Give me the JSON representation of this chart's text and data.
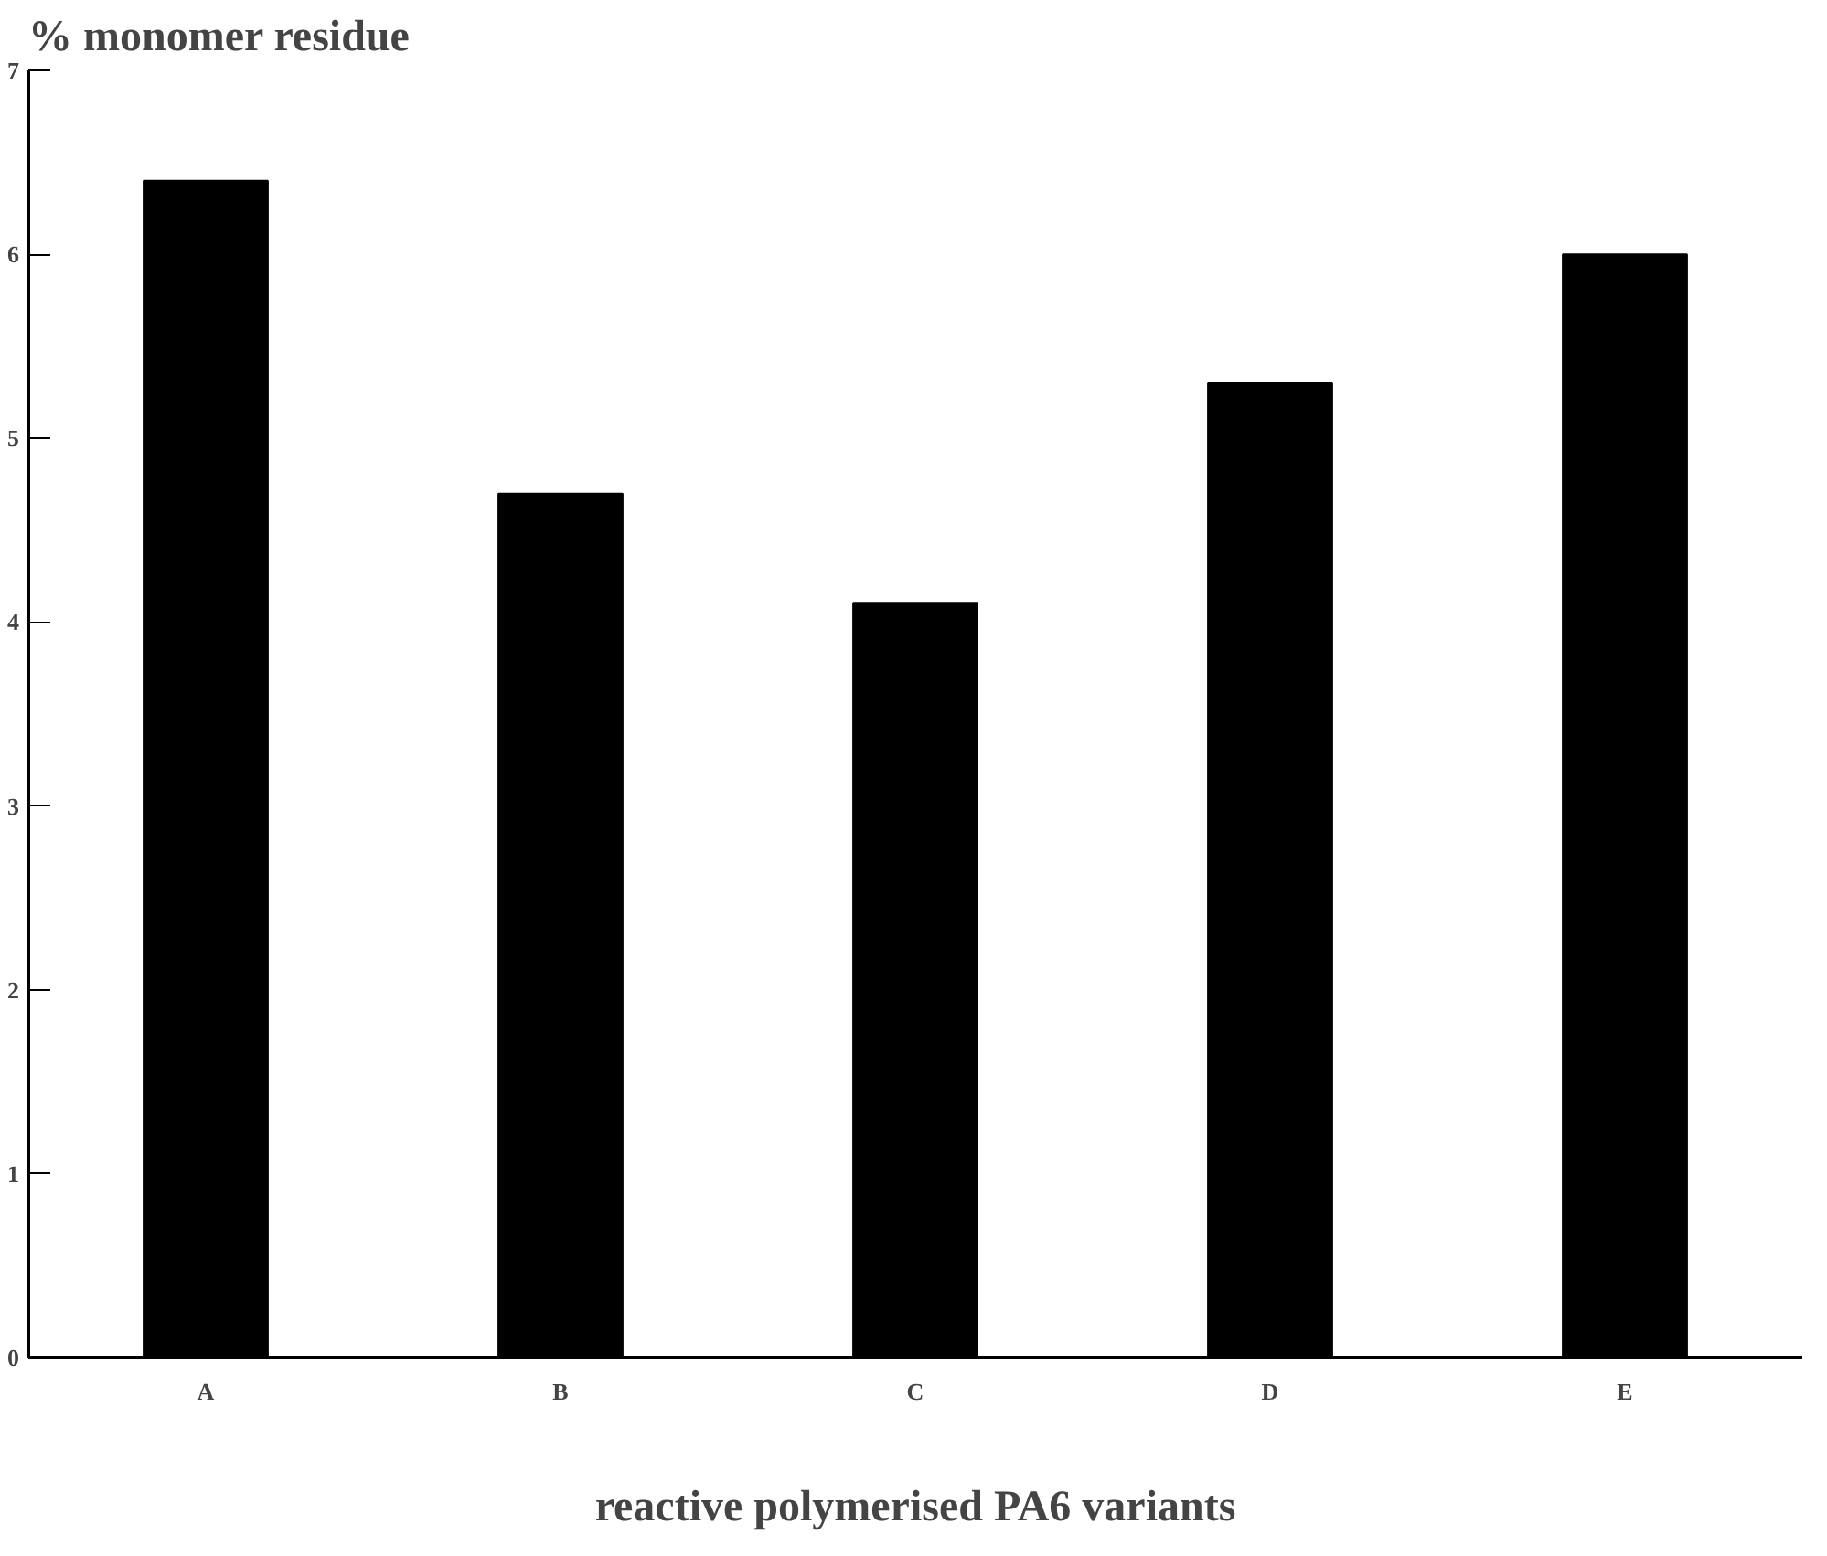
{
  "chart_data": {
    "type": "bar",
    "ylabel": "% monomer residue",
    "xlabel": "reactive polymerised PA6 variants",
    "categories": [
      "A",
      "B",
      "C",
      "D",
      "E"
    ],
    "values": [
      6.4,
      4.7,
      4.1,
      5.3,
      6.0
    ],
    "color": "#000000",
    "ylim": [
      0,
      7
    ],
    "yticks": [
      0,
      1,
      2,
      3,
      4,
      5,
      6,
      7
    ],
    "grid": false
  }
}
